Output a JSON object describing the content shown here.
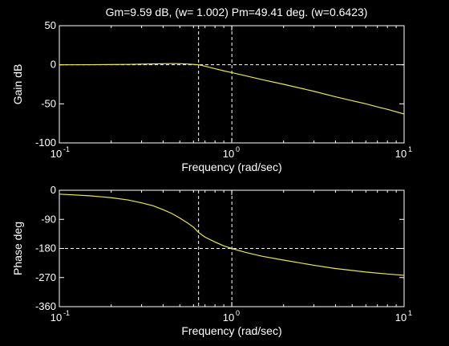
{
  "colors": {
    "background": "#000000",
    "axes": "#ffffff",
    "curve": "#e8e84a",
    "guides": "#ffffff"
  },
  "chart_data": [
    {
      "type": "line",
      "title": "Gm=9.59 dB, (w= 1.002)   Pm=49.41 deg. (w=0.6423)",
      "xlabel": "Frequency (rad/sec)",
      "ylabel": "Gain dB",
      "x_scale": "log",
      "xlim": [
        0.1,
        10
      ],
      "ylim": [
        -100,
        50
      ],
      "x_ticks": [
        {
          "value": 0.1,
          "base": "10",
          "exp": "-1"
        },
        {
          "value": 1,
          "base": "10",
          "exp": "0"
        },
        {
          "value": 10,
          "base": "10",
          "exp": "1"
        }
      ],
      "y_ticks": [
        "50",
        "0",
        "-50",
        "-100"
      ],
      "y_tick_values": [
        50,
        0,
        -50,
        -100
      ],
      "grid": false,
      "reference_lines": {
        "horizontal": [
          0
        ],
        "vertical": [
          0.6423,
          1.002
        ]
      },
      "series": [
        {
          "x": [
            0.1,
            0.15,
            0.2,
            0.25,
            0.3,
            0.35,
            0.4,
            0.45,
            0.5,
            0.55,
            0.6,
            0.6423,
            0.7,
            0.8,
            0.9,
            1.0,
            1.2,
            1.5,
            2,
            3,
            4,
            5,
            6,
            7,
            8,
            10
          ],
          "y": [
            0,
            0.1,
            0.3,
            0.5,
            0.8,
            1.1,
            1.4,
            1.5,
            1.4,
            1.0,
            0.4,
            0,
            -1.8,
            -5,
            -7.8,
            -10,
            -14,
            -19,
            -25,
            -34,
            -41,
            -46,
            -50,
            -54,
            -57,
            -63
          ]
        }
      ]
    },
    {
      "type": "line",
      "xlabel": "Frequency (rad/sec)",
      "ylabel": "Phase deg",
      "x_scale": "log",
      "xlim": [
        0.1,
        10
      ],
      "ylim": [
        -360,
        0
      ],
      "x_ticks": [
        {
          "value": 0.1,
          "base": "10",
          "exp": "-1"
        },
        {
          "value": 1,
          "base": "10",
          "exp": "0"
        },
        {
          "value": 10,
          "base": "10",
          "exp": "1"
        }
      ],
      "y_ticks": [
        "0",
        "-90",
        "-180",
        "-270",
        "-360"
      ],
      "y_tick_values": [
        0,
        -90,
        -180,
        -270,
        -360
      ],
      "grid": false,
      "reference_lines": {
        "horizontal": [
          -180
        ],
        "vertical": [
          0.6423,
          1.002
        ]
      },
      "series": [
        {
          "x": [
            0.1,
            0.15,
            0.2,
            0.25,
            0.3,
            0.35,
            0.4,
            0.45,
            0.5,
            0.55,
            0.6,
            0.6423,
            0.7,
            0.8,
            0.9,
            1.0,
            1.2,
            1.5,
            2,
            3,
            4,
            5,
            6,
            8,
            10
          ],
          "y": [
            -12,
            -17,
            -23,
            -30,
            -39,
            -48,
            -60,
            -72,
            -86,
            -100,
            -114,
            -130.6,
            -145,
            -160,
            -172,
            -180,
            -192,
            -204,
            -216,
            -232,
            -242,
            -248,
            -253,
            -259,
            -263
          ]
        }
      ]
    }
  ]
}
